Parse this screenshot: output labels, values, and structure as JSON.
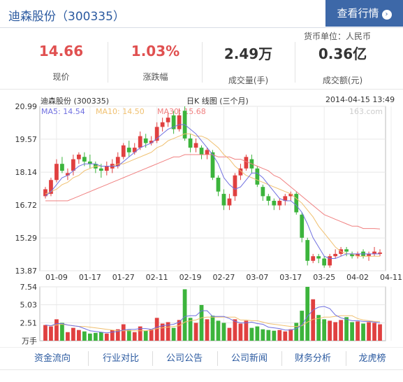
{
  "header": {
    "title": "迪森股份（300335）",
    "quote_button": "查看行情",
    "quote_arrow": "›",
    "currency_label": "货币单位：人民币"
  },
  "stats": [
    {
      "value": "14.66",
      "label": "现价"
    },
    {
      "value": "1.03%",
      "label": "涨跌幅"
    },
    {
      "value": "2.49万",
      "label": "成交量(手)"
    },
    {
      "value": "0.36亿",
      "label": "成交额(元)"
    }
  ],
  "colors": {
    "up": "#e04040",
    "down": "#3cb43c",
    "ma5": "#7070e0",
    "ma10": "#f0c070",
    "ma30": "#f08080",
    "brand": "#3d68a8"
  },
  "chart_meta": {
    "name": "迪森股份 (300335)",
    "type_label": "日K 线图 (三个月)",
    "datetime": "2014-04-15 13:49",
    "watermark": "163.com",
    "ma5_label": "MA5: 14.54",
    "ma10_label": "MA10: 14.50",
    "ma30_label": "MA30: 15.68",
    "volume_unit": "万手"
  },
  "chart_data": {
    "type": "candlestick",
    "y_ticks": [
      "20.99",
      "19.57",
      "18.14",
      "16.72",
      "15.29",
      "13.87"
    ],
    "ylim": [
      13.87,
      20.99
    ],
    "x_ticks": [
      "01-09",
      "01-17",
      "01-27",
      "02-11",
      "02-19",
      "02-27",
      "03-07",
      "03-17",
      "03-25",
      "04-02",
      "04-11"
    ],
    "x_tick_index": [
      2,
      8,
      14,
      20,
      26,
      32,
      38,
      44,
      50,
      56,
      62
    ],
    "candles": [
      [
        17.1,
        17.4,
        17.5,
        17.0
      ],
      [
        17.2,
        17.8,
        17.9,
        17.1
      ],
      [
        17.8,
        18.5,
        18.7,
        17.7
      ],
      [
        18.5,
        18.2,
        18.8,
        18.1
      ],
      [
        18.0,
        18.1,
        18.3,
        17.8
      ],
      [
        18.2,
        18.7,
        18.9,
        18.0
      ],
      [
        18.7,
        18.9,
        19.0,
        18.5
      ],
      [
        18.8,
        18.6,
        19.0,
        18.4
      ],
      [
        18.6,
        18.5,
        18.9,
        18.3
      ],
      [
        18.5,
        18.3,
        18.6,
        18.1
      ],
      [
        18.3,
        18.2,
        18.5,
        17.9
      ],
      [
        18.2,
        18.4,
        18.6,
        18.0
      ],
      [
        18.3,
        18.5,
        18.7,
        18.1
      ],
      [
        18.4,
        18.8,
        19.0,
        18.3
      ],
      [
        18.8,
        19.3,
        19.4,
        18.7
      ],
      [
        19.2,
        19.0,
        19.5,
        18.8
      ],
      [
        19.0,
        19.2,
        19.4,
        18.9
      ],
      [
        19.2,
        19.7,
        19.9,
        19.1
      ],
      [
        19.6,
        19.4,
        19.8,
        19.2
      ],
      [
        19.4,
        19.5,
        19.7,
        19.3
      ],
      [
        19.5,
        20.1,
        20.3,
        19.4
      ],
      [
        20.1,
        20.3,
        20.5,
        19.9
      ],
      [
        20.3,
        20.5,
        20.7,
        20.1
      ],
      [
        20.6,
        20.0,
        20.8,
        19.8
      ],
      [
        20.0,
        20.6,
        20.9,
        19.9
      ],
      [
        20.8,
        19.6,
        20.99,
        19.5
      ],
      [
        19.6,
        19.2,
        19.8,
        19.0
      ],
      [
        19.2,
        19.4,
        19.6,
        19.0
      ],
      [
        19.2,
        18.9,
        19.3,
        18.7
      ],
      [
        18.9,
        19.1,
        19.2,
        18.7
      ],
      [
        19.0,
        17.9,
        19.1,
        17.8
      ],
      [
        17.9,
        17.3,
        18.0,
        17.1
      ],
      [
        17.2,
        16.7,
        17.4,
        16.5
      ],
      [
        16.7,
        17.0,
        17.2,
        16.5
      ],
      [
        17.1,
        18.0,
        18.1,
        16.9
      ],
      [
        18.0,
        18.3,
        18.5,
        17.8
      ],
      [
        18.3,
        18.8,
        18.9,
        18.2
      ],
      [
        18.7,
        18.3,
        18.9,
        18.1
      ],
      [
        18.3,
        17.6,
        18.4,
        17.5
      ],
      [
        17.5,
        17.1,
        17.6,
        16.9
      ],
      [
        17.1,
        16.9,
        17.2,
        16.7
      ],
      [
        16.9,
        16.7,
        17.0,
        16.5
      ],
      [
        16.7,
        16.9,
        17.0,
        16.5
      ],
      [
        16.9,
        17.1,
        17.2,
        16.7
      ],
      [
        17.1,
        17.2,
        17.3,
        16.9
      ],
      [
        17.2,
        16.4,
        17.3,
        16.3
      ],
      [
        16.3,
        15.3,
        16.4,
        15.1
      ],
      [
        15.2,
        14.3,
        15.3,
        14.1
      ],
      [
        14.3,
        14.5,
        14.6,
        14.2
      ],
      [
        14.5,
        14.4,
        14.6,
        14.2
      ],
      [
        14.4,
        14.1,
        14.5,
        14.0
      ],
      [
        14.1,
        14.5,
        14.6,
        14.0
      ],
      [
        14.5,
        14.6,
        14.8,
        14.4
      ],
      [
        14.6,
        14.8,
        14.9,
        14.5
      ],
      [
        14.8,
        14.7,
        14.9,
        14.5
      ],
      [
        14.6,
        14.5,
        14.7,
        14.4
      ],
      [
        14.5,
        14.6,
        14.7,
        14.4
      ],
      [
        14.7,
        14.5,
        14.8,
        14.4
      ],
      [
        14.5,
        14.6,
        14.7,
        14.3
      ],
      [
        14.6,
        14.7,
        14.9,
        14.5
      ],
      [
        14.6,
        14.66,
        14.8,
        14.5
      ]
    ],
    "ma5": [
      17.1,
      17.3,
      17.6,
      17.9,
      18.0,
      18.2,
      18.4,
      18.5,
      18.5,
      18.5,
      18.4,
      18.4,
      18.4,
      18.4,
      18.6,
      18.8,
      19.0,
      19.2,
      19.3,
      19.4,
      19.6,
      19.8,
      20.0,
      20.1,
      20.2,
      20.2,
      20.0,
      19.8,
      19.5,
      19.2,
      18.9,
      18.5,
      17.9,
      17.6,
      17.4,
      17.5,
      17.8,
      18.1,
      18.1,
      17.9,
      17.6,
      17.3,
      17.0,
      16.9,
      16.9,
      16.7,
      16.4,
      15.9,
      15.3,
      14.9,
      14.5,
      14.4,
      14.4,
      14.5,
      14.6,
      14.6,
      14.6,
      14.6,
      14.6,
      14.6,
      14.6
    ],
    "ma10": [
      17.2,
      17.3,
      17.4,
      17.6,
      17.7,
      17.9,
      18.0,
      18.2,
      18.3,
      18.4,
      18.4,
      18.4,
      18.4,
      18.5,
      18.5,
      18.6,
      18.7,
      18.8,
      18.9,
      19.0,
      19.2,
      19.3,
      19.5,
      19.6,
      19.7,
      19.8,
      19.8,
      19.7,
      19.7,
      19.6,
      19.4,
      19.2,
      18.9,
      18.7,
      18.4,
      18.2,
      18.0,
      17.9,
      17.8,
      17.7,
      17.6,
      17.5,
      17.4,
      17.3,
      17.2,
      17.0,
      16.8,
      16.5,
      16.2,
      15.8,
      15.5,
      15.2,
      14.9,
      14.7,
      14.6,
      14.6,
      14.5,
      14.5,
      14.5,
      14.5,
      14.5
    ],
    "ma30": [
      16.9,
      16.9,
      16.9,
      16.9,
      16.9,
      17.0,
      17.1,
      17.2,
      17.3,
      17.4,
      17.5,
      17.6,
      17.7,
      17.8,
      17.9,
      18.0,
      18.1,
      18.2,
      18.3,
      18.4,
      18.5,
      18.6,
      18.7,
      18.8,
      18.8,
      18.9,
      18.9,
      18.9,
      18.9,
      18.9,
      18.9,
      18.8,
      18.8,
      18.8,
      18.7,
      18.7,
      18.6,
      18.5,
      18.4,
      18.3,
      18.2,
      18.0,
      17.9,
      17.7,
      17.5,
      17.3,
      17.1,
      16.9,
      16.7,
      16.5,
      16.3,
      16.2,
      16.1,
      16.0,
      15.9,
      15.8,
      15.8,
      15.7,
      15.7,
      15.7,
      15.68
    ],
    "volume_ticks": [
      "7.54",
      "5.03",
      "2.51"
    ],
    "volume_ylim": [
      0,
      7.54
    ],
    "volume": [
      2.2,
      2.0,
      3.0,
      2.5,
      1.2,
      1.8,
      1.5,
      1.3,
      1.0,
      1.1,
      1.2,
      1.0,
      1.5,
      1.6,
      2.3,
      1.5,
      1.2,
      2.0,
      1.4,
      1.6,
      3.2,
      2.4,
      2.6,
      1.8,
      2.9,
      7.2,
      3.2,
      2.5,
      5.0,
      3.0,
      3.5,
      2.8,
      2.5,
      1.8,
      3.0,
      2.4,
      2.8,
      1.8,
      2.0,
      1.6,
      1.5,
      1.4,
      1.5,
      1.3,
      1.6,
      2.5,
      4.2,
      7.54,
      5.8,
      3.6,
      3.0,
      2.8,
      2.6,
      2.9,
      3.3,
      2.6,
      2.7,
      2.4,
      2.6,
      2.5,
      2.3
    ],
    "vol_ma5": [
      2.2,
      2.1,
      2.4,
      2.4,
      2.2,
      2.1,
      2.0,
      1.7,
      1.4,
      1.3,
      1.2,
      1.1,
      1.2,
      1.3,
      1.5,
      1.6,
      1.6,
      1.7,
      1.7,
      1.6,
      1.9,
      2.1,
      2.2,
      2.3,
      2.6,
      3.4,
      3.5,
      3.5,
      4.2,
      4.2,
      3.4,
      3.4,
      3.4,
      3.1,
      2.7,
      2.5,
      2.5,
      2.6,
      2.4,
      2.3,
      1.9,
      1.8,
      1.7,
      1.5,
      1.5,
      1.7,
      2.2,
      3.4,
      4.3,
      4.7,
      4.8,
      4.5,
      3.6,
      3.2,
      3.0,
      2.8,
      2.8,
      2.7,
      2.7,
      2.6,
      2.5
    ],
    "vol_ma10": [
      2.2,
      2.1,
      2.2,
      2.3,
      2.2,
      2.1,
      2.0,
      2.0,
      1.9,
      1.8,
      1.7,
      1.6,
      1.5,
      1.4,
      1.4,
      1.4,
      1.4,
      1.4,
      1.4,
      1.5,
      1.7,
      1.8,
      1.9,
      2.0,
      2.1,
      2.6,
      2.8,
      2.9,
      3.2,
      3.3,
      3.3,
      3.3,
      3.3,
      3.3,
      3.3,
      2.9,
      2.9,
      2.8,
      2.8,
      2.6,
      2.4,
      2.3,
      2.2,
      2.1,
      2.0,
      2.0,
      2.1,
      2.6,
      3.0,
      3.1,
      3.3,
      3.3,
      3.4,
      3.5,
      3.5,
      3.5,
      3.1,
      2.9,
      2.8,
      2.7,
      2.7
    ]
  },
  "footer": {
    "links": [
      "资金流向",
      "行业对比",
      "公司公告",
      "公司新闻",
      "财务分析",
      "龙虎榜"
    ]
  }
}
